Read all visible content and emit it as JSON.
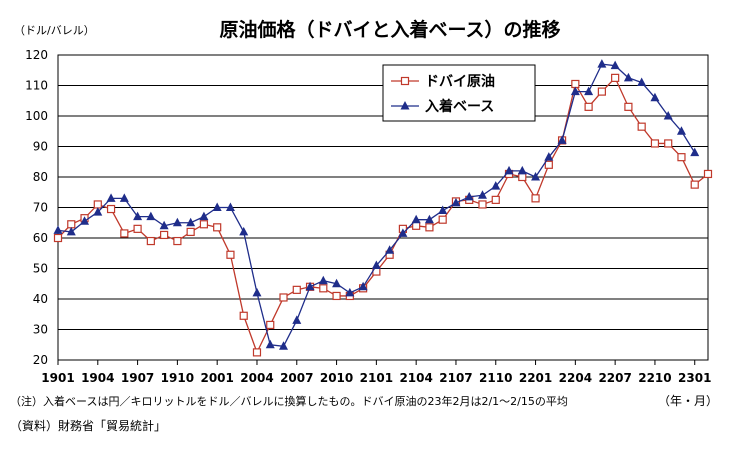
{
  "chart_data": {
    "type": "line",
    "title": "原油価格（ドバイと入着ベース）の推移",
    "ylabel": "（ドル/バレル）",
    "xlabel": "（年・月）",
    "ylim": [
      20,
      120
    ],
    "yticks": [
      20,
      30,
      40,
      50,
      60,
      70,
      80,
      90,
      100,
      110,
      120
    ],
    "xtick_labels": [
      "1901",
      "1904",
      "1907",
      "1910",
      "2001",
      "2004",
      "2007",
      "2010",
      "2101",
      "2104",
      "2107",
      "2110",
      "2201",
      "2204",
      "2207",
      "2210",
      "2301"
    ],
    "x_start": "2019-01",
    "x_end": "2023-02",
    "grid": "horizontal",
    "legend_position": "top-center",
    "series": [
      {
        "name": "ドバイ原油",
        "color": "#c0392b",
        "marker": "square-open",
        "x": [
          "2019-01",
          "2019-02",
          "2019-03",
          "2019-04",
          "2019-05",
          "2019-06",
          "2019-07",
          "2019-08",
          "2019-09",
          "2019-10",
          "2019-11",
          "2019-12",
          "2020-01",
          "2020-02",
          "2020-03",
          "2020-04",
          "2020-05",
          "2020-06",
          "2020-07",
          "2020-08",
          "2020-09",
          "2020-10",
          "2020-11",
          "2020-12",
          "2021-01",
          "2021-02",
          "2021-03",
          "2021-04",
          "2021-05",
          "2021-06",
          "2021-07",
          "2021-08",
          "2021-09",
          "2021-10",
          "2021-11",
          "2021-12",
          "2022-01",
          "2022-02",
          "2022-03",
          "2022-04",
          "2022-05",
          "2022-06",
          "2022-07",
          "2022-08",
          "2022-09",
          "2022-10",
          "2022-11",
          "2022-12",
          "2023-01",
          "2023-02"
        ],
        "values": [
          60,
          64.5,
          66.5,
          71,
          69.5,
          61.5,
          63,
          59,
          61,
          59,
          62,
          64.5,
          63.5,
          54.5,
          34.5,
          22.5,
          31.5,
          40.5,
          43,
          44,
          43.5,
          41,
          41,
          43.5,
          49,
          54.5,
          63,
          64,
          63.5,
          66,
          72,
          72.5,
          71,
          72.5,
          81,
          80,
          73,
          84,
          92,
          110.5,
          103,
          108,
          112.5,
          103,
          96.5,
          91,
          91,
          86.5,
          77.5,
          81
        ]
      },
      {
        "name": "入着ベース",
        "color": "#1f2d8a",
        "marker": "triangle-filled",
        "x": [
          "2019-01",
          "2019-02",
          "2019-03",
          "2019-04",
          "2019-05",
          "2019-06",
          "2019-07",
          "2019-08",
          "2019-09",
          "2019-10",
          "2019-11",
          "2019-12",
          "2020-01",
          "2020-02",
          "2020-03",
          "2020-04",
          "2020-05",
          "2020-06",
          "2020-07",
          "2020-08",
          "2020-09",
          "2020-10",
          "2020-11",
          "2020-12",
          "2021-01",
          "2021-02",
          "2021-03",
          "2021-04",
          "2021-05",
          "2021-06",
          "2021-07",
          "2021-08",
          "2021-09",
          "2021-10",
          "2021-11",
          "2021-12",
          "2022-01",
          "2022-02",
          "2022-03",
          "2022-04",
          "2022-05",
          "2022-06",
          "2022-07",
          "2022-08",
          "2022-09",
          "2022-10",
          "2022-11",
          "2022-12",
          "2023-01"
        ],
        "values": [
          62.5,
          62,
          65.5,
          68.5,
          73,
          73,
          67,
          67,
          64,
          65,
          65,
          67,
          70,
          70,
          62,
          42,
          25,
          24.5,
          33,
          44,
          46,
          45,
          42,
          44,
          51,
          56,
          61.5,
          66,
          66,
          69,
          71.5,
          73.5,
          74,
          77,
          82,
          82,
          80,
          86.5,
          92,
          108,
          108,
          117,
          116.5,
          112.5,
          111,
          106,
          100,
          95,
          88
        ]
      }
    ]
  },
  "notes": {
    "note": "（注）入着ベースは円／キロリットルをドル／バレルに換算したもの。ドバイ原油の23年2月は2/1〜2/15の平均",
    "source": "（資料）財務省「貿易統計」"
  }
}
